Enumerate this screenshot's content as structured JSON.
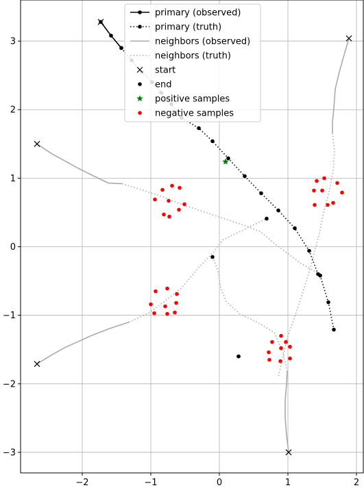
{
  "chart_data": {
    "type": "scatter",
    "xlim": [
      -2.9,
      2.1
    ],
    "ylim": [
      -3.3,
      3.6
    ],
    "xticks": [
      -2,
      -1,
      0,
      1,
      2
    ],
    "xtick_labels": [
      "−2",
      "−1",
      "0",
      "1",
      "2"
    ],
    "yticks": [
      -3,
      -2,
      -1,
      0,
      1,
      2,
      3
    ],
    "ytick_labels": [
      "−3",
      "−2",
      "−1",
      "0",
      "1",
      "2",
      "3"
    ],
    "grid": true,
    "legend_placement": "top-center",
    "colors": {
      "primary": "#000000",
      "neighbors": "#aaaaaa",
      "positive": "#008000",
      "negative": "#ff0000"
    },
    "legend": [
      {
        "label": "primary (observed)",
        "style": "solid-dot",
        "color": "#000000"
      },
      {
        "label": "primary (truth)",
        "style": "dotted-dot",
        "color": "#000000"
      },
      {
        "label": "neighbors (observed)",
        "style": "solid",
        "color": "#aaaaaa"
      },
      {
        "label": "neighbors (truth)",
        "style": "dotted",
        "color": "#aaaaaa"
      },
      {
        "label": "start",
        "style": "x-marker",
        "color": "#000000"
      },
      {
        "label": "end",
        "style": "dot-marker",
        "color": "#000000"
      },
      {
        "label": "positive samples",
        "style": "star-marker",
        "color": "#008000"
      },
      {
        "label": "negative samples",
        "style": "dot-marker",
        "color": "#ff0000"
      }
    ],
    "primary": {
      "observed": [
        [
          -1.73,
          3.28
        ],
        [
          -1.58,
          3.08
        ],
        [
          -1.43,
          2.9
        ]
      ],
      "truth": [
        [
          -1.43,
          2.9
        ],
        [
          -1.28,
          2.72
        ],
        [
          -1.13,
          2.55
        ],
        [
          -0.98,
          2.4
        ],
        [
          -0.85,
          2.25
        ],
        [
          -0.7,
          2.08
        ],
        [
          -0.55,
          1.88
        ],
        [
          -0.3,
          1.73
        ],
        [
          -0.1,
          1.54
        ],
        [
          0.13,
          1.29
        ],
        [
          0.37,
          1.03
        ],
        [
          0.61,
          0.78
        ],
        [
          0.86,
          0.53
        ],
        [
          1.1,
          0.27
        ],
        [
          1.31,
          -0.06
        ],
        [
          1.44,
          -0.4
        ],
        [
          1.47,
          -0.42
        ],
        [
          1.59,
          -0.81
        ],
        [
          1.67,
          -1.21
        ]
      ],
      "start": [
        -1.73,
        3.28
      ],
      "end": [
        1.47,
        -0.42
      ]
    },
    "neighbors": [
      {
        "observed": [
          [
            1.89,
            3.04
          ],
          [
            1.82,
            2.8
          ],
          [
            1.75,
            2.55
          ],
          [
            1.69,
            2.3
          ],
          [
            1.67,
            2.02
          ],
          [
            1.65,
            1.82
          ],
          [
            1.65,
            1.66
          ]
        ],
        "truth": [
          [
            1.65,
            1.66
          ],
          [
            1.68,
            1.4
          ],
          [
            1.66,
            1.1
          ],
          [
            1.6,
            0.8
          ],
          [
            1.52,
            0.5
          ],
          [
            1.46,
            0.2
          ],
          [
            1.38,
            -0.1
          ],
          [
            1.3,
            -0.4
          ],
          [
            1.2,
            -0.72
          ],
          [
            1.1,
            -1.02
          ],
          [
            1.0,
            -1.3
          ],
          [
            0.93,
            -1.6
          ],
          [
            0.86,
            -1.9
          ]
        ],
        "start": [
          1.89,
          3.04
        ],
        "end": [
          -0.1,
          -0.15
        ]
      },
      {
        "observed": [
          [
            -2.66,
            1.5
          ],
          [
            -2.45,
            1.36
          ],
          [
            -2.25,
            1.25
          ],
          [
            -2.05,
            1.14
          ],
          [
            -1.85,
            1.04
          ],
          [
            -1.62,
            0.93
          ],
          [
            -1.42,
            0.92
          ]
        ],
        "truth": [
          [
            -1.42,
            0.92
          ],
          [
            -1.1,
            0.82
          ],
          [
            -0.8,
            0.72
          ],
          [
            -0.5,
            0.6
          ],
          [
            -0.2,
            0.5
          ],
          [
            0.1,
            0.4
          ],
          [
            0.4,
            0.3
          ],
          [
            0.6,
            0.22
          ],
          [
            0.8,
            0.05
          ],
          [
            1.0,
            -0.1
          ],
          [
            1.2,
            -0.25
          ],
          [
            1.46,
            -0.4
          ]
        ],
        "start": [
          -2.66,
          1.5
        ],
        "end": [
          0.69,
          0.41
        ]
      },
      {
        "observed": [
          [
            -2.66,
            -1.71
          ],
          [
            -2.45,
            -1.58
          ],
          [
            -2.25,
            -1.47
          ],
          [
            -2.05,
            -1.38
          ],
          [
            -1.85,
            -1.29
          ],
          [
            -1.62,
            -1.2
          ],
          [
            -1.32,
            -1.1
          ]
        ],
        "truth": [
          [
            -1.32,
            -1.1
          ],
          [
            -1.05,
            -0.98
          ],
          [
            -0.8,
            -0.8
          ],
          [
            -0.55,
            -0.6
          ],
          [
            -0.3,
            -0.3
          ],
          [
            -0.1,
            -0.1
          ],
          [
            0.05,
            0.1
          ],
          [
            0.3,
            0.22
          ],
          [
            0.5,
            0.32
          ],
          [
            0.69,
            0.41
          ]
        ],
        "start": [
          -2.66,
          -1.71
        ],
        "end": [
          0.28,
          -1.6
        ]
      },
      {
        "observed": [
          [
            1.01,
            -3.0
          ],
          [
            0.98,
            -2.75
          ],
          [
            0.96,
            -2.5
          ],
          [
            0.96,
            -2.25
          ],
          [
            0.98,
            -2.0
          ],
          [
            0.99,
            -1.82
          ]
        ],
        "truth": [
          [
            0.99,
            -1.82
          ],
          [
            0.93,
            -1.55
          ],
          [
            0.8,
            -1.25
          ],
          [
            0.55,
            -1.1
          ],
          [
            0.3,
            -0.98
          ],
          [
            0.1,
            -0.8
          ],
          [
            0.02,
            -0.6
          ],
          [
            -0.02,
            -0.35
          ],
          [
            -0.1,
            -0.15
          ]
        ],
        "start": [
          1.01,
          -3.0
        ],
        "end": [
          0.28,
          -1.6
        ]
      }
    ],
    "positive_samples": [
      [
        0.09,
        1.24
      ]
    ],
    "negative_samples": [
      [
        -0.94,
        0.69
      ],
      [
        -0.83,
        0.83
      ],
      [
        -0.69,
        0.89
      ],
      [
        -0.58,
        0.86
      ],
      [
        -0.74,
        0.67
      ],
      [
        -0.51,
        0.62
      ],
      [
        -0.59,
        0.54
      ],
      [
        -0.81,
        0.47
      ],
      [
        -0.73,
        0.44
      ],
      [
        1.42,
        0.96
      ],
      [
        1.53,
        1.0
      ],
      [
        1.38,
        0.82
      ],
      [
        1.5,
        0.82
      ],
      [
        1.72,
        0.93
      ],
      [
        1.79,
        0.79
      ],
      [
        1.39,
        0.61
      ],
      [
        1.58,
        0.61
      ],
      [
        1.66,
        0.64
      ],
      [
        -0.76,
        -0.61
      ],
      [
        -0.93,
        -0.65
      ],
      [
        -0.62,
        -0.69
      ],
      [
        -1.0,
        -0.84
      ],
      [
        -0.79,
        -0.87
      ],
      [
        -0.63,
        -0.82
      ],
      [
        -0.95,
        -0.97
      ],
      [
        -0.76,
        -0.98
      ],
      [
        -0.65,
        -0.96
      ],
      [
        0.9,
        -1.3
      ],
      [
        0.77,
        -1.39
      ],
      [
        0.97,
        -1.39
      ],
      [
        0.9,
        -1.48
      ],
      [
        1.03,
        -1.46
      ],
      [
        0.72,
        -1.54
      ],
      [
        0.73,
        -1.65
      ],
      [
        0.89,
        -1.67
      ],
      [
        1.03,
        -1.63
      ]
    ]
  }
}
